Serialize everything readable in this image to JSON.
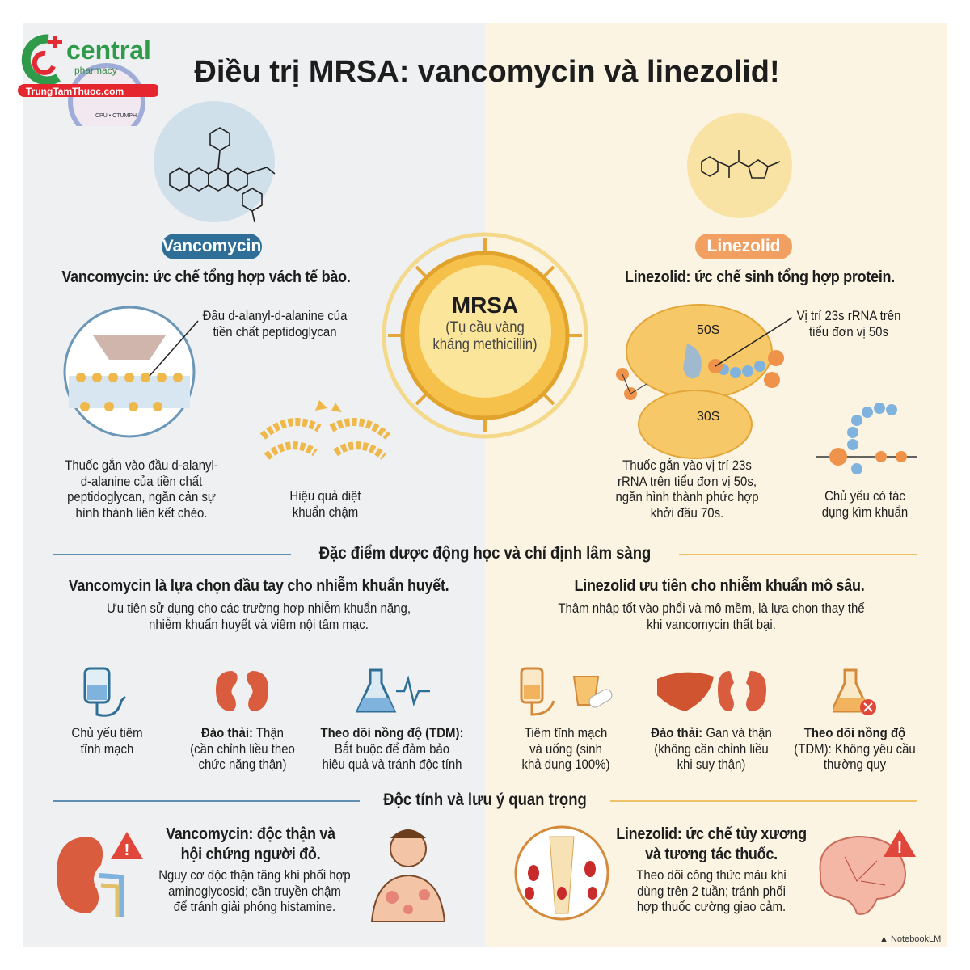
{
  "logo": {
    "brand": "central",
    "sub": "pharmacy",
    "site": "TrungTamThuoc.com",
    "seal": "CPU • CTUMPH"
  },
  "title": "Điều trị MRSA: vancomycin và linezolid!",
  "colors": {
    "vanco": "#2f6f97",
    "linezolid": "#f1a062",
    "warning": "#e0463a",
    "mrsa": "#f5c14a"
  },
  "vancomycin": {
    "label": "Vancomycin",
    "mechanism": "Vancomycin: ức chế tổng hợp vách tế bào.",
    "callout": [
      "Đầu d-alanyl-d-alanine của",
      "tiền chất peptidoglycan"
    ],
    "caption1": [
      "Thuốc gắn vào đầu d-alanyl-",
      "d-alanine của tiền chất",
      "peptidoglycan, ngăn cản sự",
      "hình thành liên kết chéo."
    ],
    "caption2": [
      "Hiệu quả diệt",
      "khuẩn chậm"
    ]
  },
  "mrsa": {
    "name": "MRSA",
    "desc1": "(Tụ cầu vàng",
    "desc2": "kháng methicillin)"
  },
  "linezolid": {
    "label": "Linezolid",
    "mechanism": "Linezolid: ức chế sinh tổng hợp protein.",
    "callout": [
      "Vị trí 23s rRNA trên",
      "tiểu đơn vị 50s"
    ],
    "sub50": "50S",
    "sub30": "30S",
    "caption1": [
      "Thuốc gắn vào vị trí 23s",
      "rRNA trên tiểu đơn vị 50s,",
      "ngăn hình thành phức hợp",
      "khởi đầu 70s."
    ],
    "caption2": [
      "Chủ yếu có tác",
      "dụng kìm khuẩn"
    ]
  },
  "section1": {
    "title": "Đặc điểm dược động học và chỉ định lâm sàng",
    "left": {
      "head": "Vancomycin là lựa chọn đầu tay cho nhiễm khuẩn huyết.",
      "desc": [
        "Ưu tiên sử dụng cho các trường hợp nhiễm khuẩn nặng,",
        "nhiễm khuẩn huyết và viêm nội tâm mạc."
      ]
    },
    "right": {
      "head": "Linezolid ưu tiên cho nhiễm khuẩn mô sâu.",
      "desc": [
        "Thâm nhập tốt vào phổi và mô mềm, là lựa chọn thay thế",
        "khi vancomycin thất bại."
      ]
    },
    "items": [
      {
        "icon": "iv-bag-icon",
        "bold": "",
        "lines": [
          "Chủ yếu tiêm",
          "tĩnh mạch"
        ]
      },
      {
        "icon": "kidney-icon",
        "bold": "Đào thải:",
        "first": " Thận",
        "lines": [
          "(cần chỉnh liều theo",
          "chức năng thận)"
        ]
      },
      {
        "icon": "flask-icon",
        "bold": "Theo dõi nồng độ (TDM):",
        "first": "",
        "lines": [
          "Bắt buộc để đảm bảo",
          "hiệu quả và tránh độc tính"
        ]
      },
      {
        "icon": "iv-pill-icon",
        "bold": "",
        "lines": [
          "Tiêm tĩnh mạch",
          "và uống (sinh",
          "khả dụng 100%)"
        ]
      },
      {
        "icon": "liver-kidney-icon",
        "bold": "Đào thải:",
        "first": " Gan và thận",
        "lines": [
          "(không cần chỉnh liều",
          "khi suy thận)"
        ]
      },
      {
        "icon": "flask-x-icon",
        "bold": "Theo dõi nồng độ",
        "first": "",
        "lines": [
          "(TDM): Không yêu cầu",
          "thường quy"
        ]
      }
    ]
  },
  "section2": {
    "title": "Độc tính và lưu ý quan trọng",
    "left": {
      "head": [
        "Vancomycin: độc thận và",
        "hội chứng người đỏ."
      ],
      "desc": [
        "Nguy cơ độc thận tăng khi phối hợp",
        "aminoglycosid; cần truyền chậm",
        "để tránh giải phóng histamine."
      ]
    },
    "right": {
      "head": [
        "Linezolid: ức chế tủy xương",
        "và tương tác thuốc."
      ],
      "desc": [
        "Theo dõi công thức máu khi",
        "dùng trên 2 tuần; tránh phối",
        "hợp thuốc cường giao cảm."
      ]
    }
  },
  "watermark": "NotebookLM"
}
